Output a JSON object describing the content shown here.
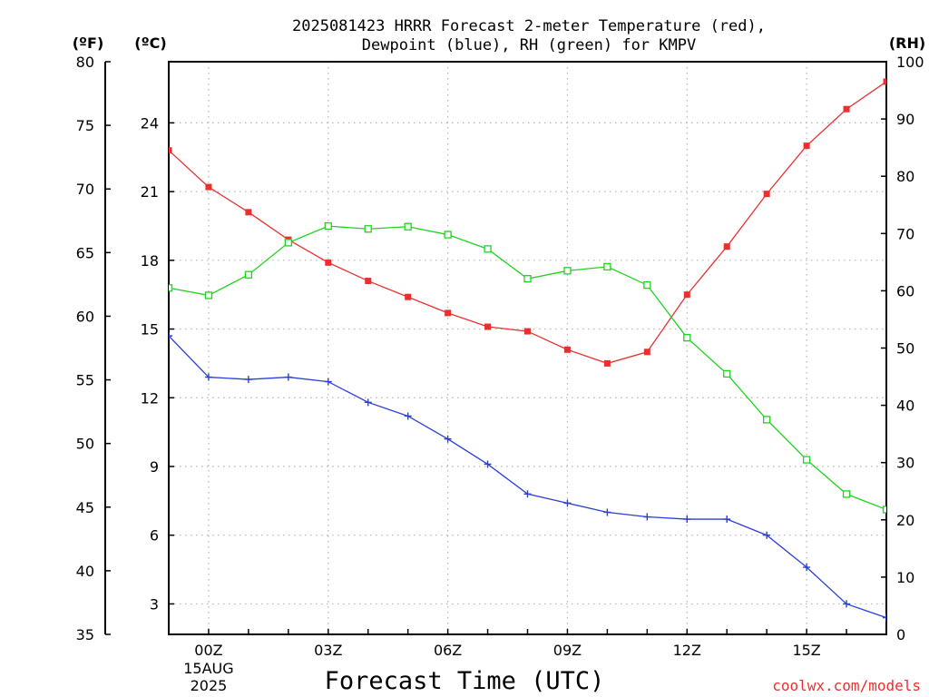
{
  "chart_data": {
    "type": "line",
    "title_line1": "2025081423 HRRR Forecast 2-meter Temperature (red),",
    "title_line2": "Dewpoint (blue), RH (green) for KMPV",
    "xlabel": "Forecast Time (UTC)",
    "unit_f": "(ºF)",
    "unit_c": "(ºC)",
    "unit_rh": "(RH)",
    "credit": "coolwx.com/models",
    "x_hours": [
      -1,
      0,
      1,
      2,
      3,
      4,
      5,
      6,
      7,
      8,
      9,
      10,
      11,
      12,
      13,
      14,
      15,
      16,
      17
    ],
    "x_ticks": [
      {
        "hour": 0,
        "label": "00Z",
        "sub1": "15AUG",
        "sub2": "2025"
      },
      {
        "hour": 3,
        "label": "03Z",
        "sub1": "",
        "sub2": ""
      },
      {
        "hour": 6,
        "label": "06Z",
        "sub1": "",
        "sub2": ""
      },
      {
        "hour": 9,
        "label": "09Z",
        "sub1": "",
        "sub2": ""
      },
      {
        "hour": 12,
        "label": "12Z",
        "sub1": "",
        "sub2": ""
      },
      {
        "hour": 15,
        "label": "15Z",
        "sub1": "",
        "sub2": ""
      }
    ],
    "xlim": [
      -1,
      17
    ],
    "celsius_ticks": [
      3,
      6,
      9,
      12,
      15,
      18,
      21,
      24
    ],
    "fahrenheit_ticks": [
      35,
      40,
      45,
      50,
      55,
      60,
      65,
      70,
      75,
      80
    ],
    "rh_ticks": [
      0,
      10,
      20,
      30,
      40,
      50,
      60,
      70,
      80,
      90,
      100
    ],
    "ylim_c": [
      1.67,
      26.67
    ],
    "ylim_f": [
      35,
      80
    ],
    "ylim_rh": [
      0,
      100
    ],
    "grid": true,
    "series": [
      {
        "name": "Temperature",
        "unit": "C",
        "color": "#e8312e",
        "marker": "filled-square",
        "values": [
          22.8,
          21.2,
          20.1,
          18.9,
          17.9,
          17.1,
          16.4,
          15.7,
          15.1,
          14.9,
          14.1,
          13.5,
          14.0,
          16.5,
          18.6,
          20.9,
          23.0,
          24.6,
          25.8
        ]
      },
      {
        "name": "Dewpoint",
        "unit": "C",
        "color": "#2a3fd8",
        "marker": "plus",
        "values": [
          14.7,
          12.9,
          12.8,
          12.9,
          12.7,
          11.8,
          11.2,
          10.2,
          9.1,
          7.8,
          7.4,
          7.0,
          6.8,
          6.7,
          6.7,
          6.0,
          4.6,
          3.0,
          2.4
        ]
      },
      {
        "name": "RH",
        "unit": "%",
        "color": "#1fd41f",
        "marker": "open-square",
        "values": [
          60.5,
          59.2,
          62.8,
          68.4,
          71.3,
          70.8,
          71.2,
          69.8,
          67.3,
          62.1,
          63.5,
          64.2,
          61.0,
          51.8,
          45.5,
          37.5,
          30.5,
          24.5,
          21.8
        ]
      }
    ]
  }
}
